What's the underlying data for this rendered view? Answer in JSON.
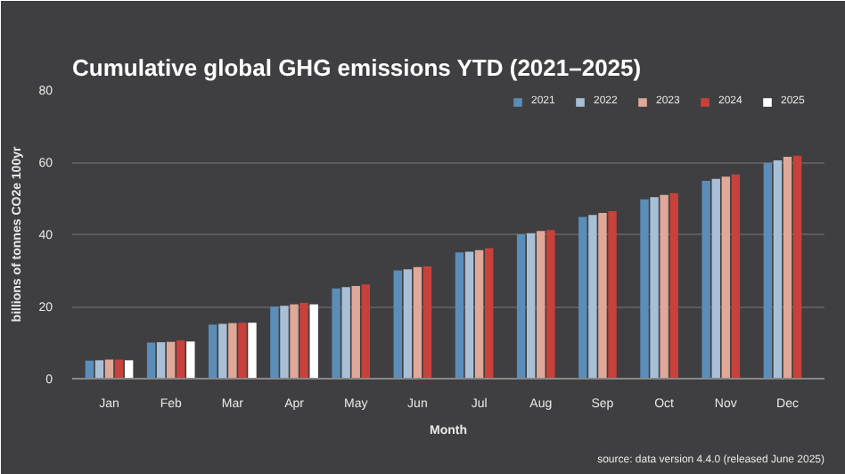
{
  "chart_data": {
    "type": "bar",
    "title": "Cumulative global GHG emissions YTD (2021–2025)",
    "xlabel": "Month",
    "ylabel": "billions of tonnes CO2e 100yr",
    "categories": [
      "Jan",
      "Feb",
      "Mar",
      "Apr",
      "May",
      "Jun",
      "Jul",
      "Aug",
      "Sep",
      "Oct",
      "Nov",
      "Dec"
    ],
    "series": [
      {
        "name": "2021",
        "color": "#5b8db8",
        "values": [
          5.0,
          10.0,
          15.0,
          20.0,
          25.0,
          30.0,
          35.0,
          40.0,
          44.8,
          49.7,
          54.8,
          59.8
        ]
      },
      {
        "name": "2022",
        "color": "#a9bfd6",
        "values": [
          5.1,
          10.1,
          15.2,
          20.2,
          25.4,
          30.3,
          35.2,
          40.3,
          45.4,
          50.3,
          55.4,
          60.5
        ]
      },
      {
        "name": "2023",
        "color": "#e0a898",
        "values": [
          5.3,
          10.2,
          15.4,
          20.6,
          25.7,
          30.9,
          35.6,
          40.9,
          45.9,
          50.9,
          56.0,
          61.5
        ]
      },
      {
        "name": "2024",
        "color": "#c8413a",
        "values": [
          5.3,
          10.6,
          15.5,
          21.0,
          26.1,
          31.1,
          36.2,
          41.2,
          46.4,
          51.4,
          56.6,
          61.8
        ]
      },
      {
        "name": "2025",
        "color": "#ffffff",
        "values": [
          5.1,
          10.3,
          15.5,
          20.6,
          null,
          null,
          null,
          null,
          null,
          null,
          null,
          null
        ]
      }
    ],
    "ylim": [
      0,
      80
    ],
    "yticks": [
      0,
      20,
      40,
      60,
      80
    ],
    "grid": "y",
    "legend": "top right",
    "annotations": [
      "source: data version 4.4.0 (released June 2025)"
    ]
  }
}
